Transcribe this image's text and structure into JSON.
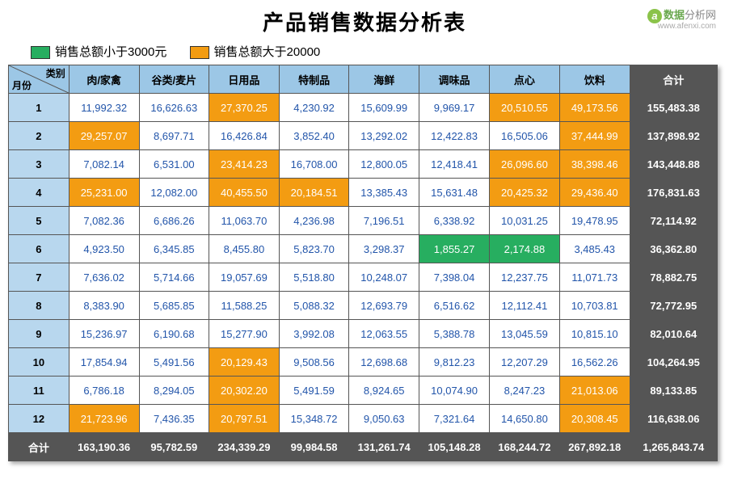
{
  "title": "产品销售数据分析表",
  "brand": {
    "logo": "a",
    "t1": "数据",
    "t2": "分析网",
    "url": "www.afenxi.com"
  },
  "legend": [
    {
      "color": "#27ae60",
      "label": "销售总额小于3000元"
    },
    {
      "color": "#f39c12",
      "label": "销售总额大于20000"
    }
  ],
  "diag": {
    "top": "类别",
    "bottom": "月份"
  },
  "columns": [
    "肉/家禽",
    "谷类/麦片",
    "日用品",
    "特制品",
    "海鲜",
    "调味品",
    "点心",
    "饮料"
  ],
  "totalLabel": "合计",
  "thresholds": {
    "low": 3000,
    "high": 20000
  },
  "colors": {
    "header": "#9cc7e6",
    "month": "#b8d7ee",
    "total": "#555555",
    "orange": "#f39c12",
    "green": "#27ae60",
    "valtext": "#2255aa",
    "border": "#555555"
  },
  "rows": [
    {
      "m": "1",
      "v": [
        "11,992.32",
        "16,626.63",
        "27,370.25",
        "4,230.92",
        "15,609.99",
        "9,969.17",
        "20,510.55",
        "49,173.56"
      ],
      "t": "155,483.38"
    },
    {
      "m": "2",
      "v": [
        "29,257.07",
        "8,697.71",
        "16,426.84",
        "3,852.40",
        "13,292.02",
        "12,422.83",
        "16,505.06",
        "37,444.99"
      ],
      "t": "137,898.92"
    },
    {
      "m": "3",
      "v": [
        "7,082.14",
        "6,531.00",
        "23,414.23",
        "16,708.00",
        "12,800.05",
        "12,418.41",
        "26,096.60",
        "38,398.46"
      ],
      "t": "143,448.88"
    },
    {
      "m": "4",
      "v": [
        "25,231.00",
        "12,082.00",
        "40,455.50",
        "20,184.51",
        "13,385.43",
        "15,631.48",
        "20,425.32",
        "29,436.40"
      ],
      "t": "176,831.63"
    },
    {
      "m": "5",
      "v": [
        "7,082.36",
        "6,686.26",
        "11,063.70",
        "4,236.98",
        "7,196.51",
        "6,338.92",
        "10,031.25",
        "19,478.95"
      ],
      "t": "72,114.92"
    },
    {
      "m": "6",
      "v": [
        "4,923.50",
        "6,345.85",
        "8,455.80",
        "5,823.70",
        "3,298.37",
        "1,855.27",
        "2,174.88",
        "3,485.43"
      ],
      "t": "36,362.80"
    },
    {
      "m": "7",
      "v": [
        "7,636.02",
        "5,714.66",
        "19,057.69",
        "5,518.80",
        "10,248.07",
        "7,398.04",
        "12,237.75",
        "11,071.73"
      ],
      "t": "78,882.75"
    },
    {
      "m": "8",
      "v": [
        "8,383.90",
        "5,685.85",
        "11,588.25",
        "5,088.32",
        "12,693.79",
        "6,516.62",
        "12,112.41",
        "10,703.81"
      ],
      "t": "72,772.95"
    },
    {
      "m": "9",
      "v": [
        "15,236.97",
        "6,190.68",
        "15,277.90",
        "3,992.08",
        "12,063.55",
        "5,388.78",
        "13,045.59",
        "10,815.10"
      ],
      "t": "82,010.64"
    },
    {
      "m": "10",
      "v": [
        "17,854.94",
        "5,491.56",
        "20,129.43",
        "9,508.56",
        "12,698.68",
        "9,812.23",
        "12,207.29",
        "16,562.26"
      ],
      "t": "104,264.95"
    },
    {
      "m": "11",
      "v": [
        "6,786.18",
        "8,294.05",
        "20,302.20",
        "5,491.59",
        "8,924.65",
        "10,074.90",
        "8,247.23",
        "21,013.06"
      ],
      "t": "89,133.85"
    },
    {
      "m": "12",
      "v": [
        "21,723.96",
        "7,436.35",
        "20,797.51",
        "15,348.72",
        "9,050.63",
        "7,321.64",
        "14,650.80",
        "20,308.45"
      ],
      "t": "116,638.06"
    }
  ],
  "colTotals": [
    "163,190.36",
    "95,782.59",
    "234,339.29",
    "99,984.58",
    "131,261.74",
    "105,148.28",
    "168,244.72",
    "267,892.18"
  ],
  "grandTotal": "1,265,843.74"
}
